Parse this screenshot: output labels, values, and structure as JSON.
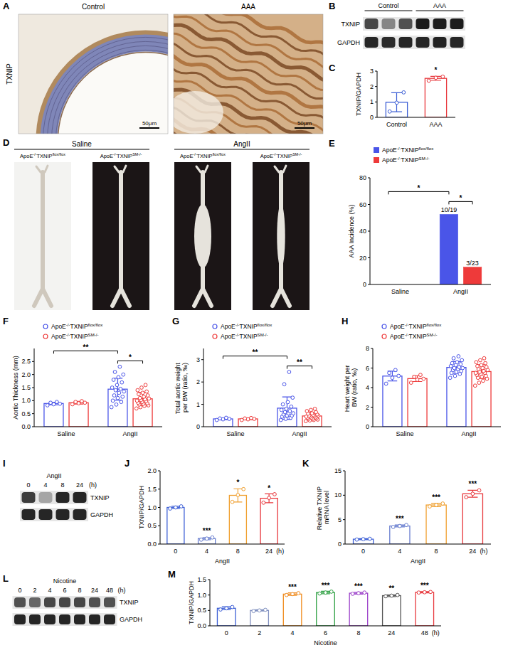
{
  "chart_data": [
    {
      "type": "bar",
      "panel_label": "C",
      "y_label": "TXNIP/GAPDH",
      "categories": [
        "Control",
        "AAA"
      ],
      "values": [
        0.98,
        2.53
      ],
      "errors": [
        0.62,
        0.13
      ],
      "points": [
        [
          0.38,
          0.95,
          1.62
        ],
        [
          2.38,
          2.57,
          2.64
        ]
      ],
      "colors": [
        "#3d5fd6",
        "#e8383d"
      ],
      "ylim": [
        0,
        3
      ],
      "yticks": [
        0,
        1,
        2,
        3
      ],
      "annotations": [
        {
          "kind": "star",
          "text": "*",
          "category": 1
        }
      ]
    },
    {
      "type": "bar",
      "panel_label": "E",
      "y_label": "AAA Incidence (%)",
      "categories": [
        "Saline",
        "AngII"
      ],
      "series": [
        {
          "name": [
            "ApoE",
            "-/-",
            "TXNIP",
            "flox/flox"
          ],
          "color": "#4a55e8",
          "values": [
            0,
            52.6
          ],
          "value_labels": [
            null,
            "10/19"
          ]
        },
        {
          "name": [
            "ApoE",
            "-/-",
            "TXNIP",
            "SM-/-"
          ],
          "color": "#ee3a3a",
          "values": [
            0,
            13.0
          ],
          "value_labels": [
            null,
            "3/23"
          ]
        }
      ],
      "data_labels": true,
      "legend": "top",
      "ylim": [
        0,
        80
      ],
      "yticks": [
        0,
        20,
        40,
        60,
        80
      ],
      "annotations": [
        {
          "kind": "bracket",
          "text": "*",
          "from": [
            1,
            0
          ],
          "to": [
            1,
            1
          ]
        },
        {
          "kind": "bracket",
          "text": "*",
          "from": [
            0,
            0
          ],
          "to": [
            1,
            0
          ]
        }
      ]
    },
    {
      "type": "bar",
      "panel_label": "F",
      "y_label": "Aortic Thickness (mm)",
      "categories": [
        "Saline",
        "AngII"
      ],
      "series": [
        {
          "name": [
            "ApoE",
            "-/-",
            "TXNIP",
            "flox/flox"
          ],
          "color": "#4a55e8",
          "values": [
            0.89,
            1.44
          ],
          "errors": [
            0.05,
            0.42
          ],
          "points": [
            [
              0.82,
              0.86,
              0.88,
              0.92,
              0.95
            ],
            [
              0.75,
              0.85,
              0.95,
              1.0,
              1.1,
              1.15,
              1.2,
              1.3,
              1.35,
              1.4,
              1.45,
              1.5,
              1.6,
              1.7,
              1.8,
              1.9,
              2.0,
              2.1,
              2.3
            ]
          ]
        },
        {
          "name": [
            "ApoE",
            "-/-",
            "TXNIP",
            "SM-/-"
          ],
          "color": "#ee3a3a",
          "values": [
            0.92,
            1.07
          ],
          "errors": [
            0.05,
            0.25
          ],
          "points": [
            [
              0.86,
              0.9,
              0.92,
              0.95,
              0.98
            ],
            [
              0.7,
              0.75,
              0.8,
              0.82,
              0.85,
              0.88,
              0.9,
              0.92,
              0.95,
              0.98,
              1.0,
              1.02,
              1.05,
              1.08,
              1.1,
              1.15,
              1.2,
              1.25,
              1.3,
              1.35,
              1.4,
              1.5,
              1.6
            ]
          ]
        }
      ],
      "legend": "top",
      "ylim": [
        0,
        3
      ],
      "yticks": [
        {
          "value": 0,
          "label": "0.0"
        },
        0.5,
        {
          "value": 1,
          "label": "1.0"
        },
        1.5,
        {
          "value": 2,
          "label": "2.0"
        },
        2.5
      ],
      "annotations": [
        {
          "kind": "bracket",
          "text": "*",
          "from": [
            1,
            0
          ],
          "to": [
            1,
            1
          ]
        },
        {
          "kind": "bracket",
          "text": "**",
          "from": [
            0,
            0
          ],
          "to": [
            1,
            0
          ]
        }
      ]
    },
    {
      "type": "bar",
      "panel_label": "G",
      "y_label": "Total aortic weight per BW (ratio, ‰)",
      "categories": [
        "Saline",
        "AngII"
      ],
      "series": [
        {
          "name": [
            "ApoE",
            "-/-",
            "TXNIP",
            "flox/flox"
          ],
          "color": "#4a55e8",
          "values": [
            0.35,
            0.83
          ],
          "errors": [
            0.04,
            0.5
          ],
          "points": [
            [
              0.3,
              0.33,
              0.35,
              0.37,
              0.4
            ],
            [
              0.3,
              0.35,
              0.4,
              0.45,
              0.5,
              0.5,
              0.55,
              0.6,
              0.6,
              0.65,
              0.7,
              0.75,
              0.8,
              0.9,
              1.0,
              1.1,
              1.3,
              1.9,
              2.45
            ]
          ]
        },
        {
          "name": [
            "ApoE",
            "-/-",
            "TXNIP",
            "SM-/-"
          ],
          "color": "#ee3a3a",
          "values": [
            0.35,
            0.48
          ],
          "errors": [
            0.04,
            0.15
          ],
          "points": [
            [
              0.3,
              0.33,
              0.35,
              0.37,
              0.39
            ],
            [
              0.25,
              0.28,
              0.3,
              0.32,
              0.35,
              0.35,
              0.38,
              0.4,
              0.4,
              0.42,
              0.45,
              0.45,
              0.48,
              0.5,
              0.5,
              0.52,
              0.55,
              0.58,
              0.6,
              0.65,
              0.7,
              0.75,
              0.8
            ]
          ]
        }
      ],
      "legend": "top",
      "ylim": [
        0,
        3.5
      ],
      "yticks": [
        0,
        1,
        2,
        3
      ],
      "annotations": [
        {
          "kind": "bracket",
          "text": "**",
          "from": [
            1,
            0
          ],
          "to": [
            1,
            1
          ]
        },
        {
          "kind": "bracket",
          "text": "**",
          "from": [
            0,
            0
          ],
          "to": [
            1,
            0
          ]
        }
      ]
    },
    {
      "type": "bar",
      "panel_label": "H",
      "y_label": "Heart weight per BW (ratio, ‰)",
      "categories": [
        "Saline",
        "AngII"
      ],
      "series": [
        {
          "name": [
            "ApoE",
            "-/-",
            "TXNIP",
            "flox/flox"
          ],
          "color": "#4a55e8",
          "values": [
            5.18,
            6.06
          ],
          "errors": [
            0.5,
            0.6
          ],
          "points": [
            [
              4.4,
              5.0,
              5.2,
              5.5,
              5.8
            ],
            [
              5.0,
              5.2,
              5.4,
              5.5,
              5.6,
              5.7,
              5.8,
              5.9,
              6.0,
              6.0,
              6.1,
              6.2,
              6.3,
              6.4,
              6.5,
              6.6,
              6.8,
              7.0,
              7.2
            ]
          ]
        },
        {
          "name": [
            "ApoE",
            "-/-",
            "TXNIP",
            "SM-/-"
          ],
          "color": "#ee3a3a",
          "values": [
            4.92,
            5.64
          ],
          "errors": [
            0.3,
            0.7
          ],
          "points": [
            [
              4.5,
              4.8,
              4.9,
              5.1,
              5.3
            ],
            [
              4.2,
              4.5,
              4.7,
              4.9,
              5.0,
              5.1,
              5.2,
              5.3,
              5.4,
              5.5,
              5.5,
              5.6,
              5.7,
              5.8,
              5.9,
              6.0,
              6.1,
              6.2,
              6.3,
              6.5,
              6.6,
              6.8,
              7.0
            ]
          ]
        }
      ],
      "legend": "top",
      "ylim": [
        0,
        8
      ],
      "yticks": [
        0,
        2,
        4,
        6,
        8
      ]
    },
    {
      "type": "bar",
      "panel_label": "J",
      "y_label": "TXNIP/GAPDH",
      "x_label": "AngII",
      "categories": [
        "0",
        "4",
        "8",
        "24"
      ],
      "values": [
        1.0,
        0.15,
        1.33,
        1.25
      ],
      "errors": [
        0.03,
        0.03,
        0.18,
        0.12
      ],
      "points": [
        [
          0.97,
          1.0,
          1.03
        ],
        [
          0.12,
          0.15,
          0.18
        ],
        [
          1.15,
          1.34,
          1.5
        ],
        [
          1.13,
          1.26,
          1.36
        ]
      ],
      "colors": [
        "#3d5fd6",
        "#6a7fd0",
        "#f0a030",
        "#e8383d"
      ],
      "ylim": [
        0,
        2
      ],
      "yticks": [
        {
          "value": 0,
          "label": "0.0"
        },
        0.5,
        {
          "value": 1,
          "label": "1.0"
        },
        1.5,
        {
          "value": 2,
          "label": "2.0"
        }
      ],
      "annotations": [
        {
          "kind": "star",
          "text": "***",
          "category": 1
        },
        {
          "kind": "star",
          "text": "*",
          "category": 2
        },
        {
          "kind": "star",
          "text": "*",
          "category": 3
        },
        {
          "kind": "unit",
          "text": "(h)"
        }
      ]
    },
    {
      "type": "bar",
      "panel_label": "K",
      "y_label": "Relative TXNIP mRNA level",
      "x_label": "AngII",
      "categories": [
        "0",
        "4",
        "8",
        "24"
      ],
      "values": [
        1.0,
        3.7,
        8.0,
        10.3
      ],
      "errors": [
        0.1,
        0.2,
        0.35,
        0.7
      ],
      "points": [
        [
          0.92,
          1.0,
          1.08
        ],
        [
          3.5,
          3.7,
          3.9
        ],
        [
          7.7,
          8.0,
          8.3
        ],
        [
          9.6,
          10.3,
          11.0
        ]
      ],
      "colors": [
        "#3d5fd6",
        "#6a7fd0",
        "#f0a030",
        "#e8383d"
      ],
      "ylim": [
        0,
        15
      ],
      "yticks": [
        0,
        5,
        10,
        15
      ],
      "annotations": [
        {
          "kind": "star",
          "text": "***",
          "category": 1
        },
        {
          "kind": "star",
          "text": "***",
          "category": 2
        },
        {
          "kind": "star",
          "text": "***",
          "category": 3
        },
        {
          "kind": "unit",
          "text": "(h)"
        }
      ]
    },
    {
      "type": "bar",
      "panel_label": "M",
      "y_label": "TXNIP/GAPDH",
      "x_label": "Nicotine",
      "categories": [
        "0",
        "2",
        "4",
        "6",
        "8",
        "24",
        "48"
      ],
      "values": [
        0.57,
        0.5,
        1.03,
        1.08,
        1.06,
        0.98,
        1.09
      ],
      "errors": [
        0.05,
        0.02,
        0.04,
        0.04,
        0.03,
        0.03,
        0.02
      ],
      "points": [
        [
          0.53,
          0.57,
          0.61
        ],
        [
          0.48,
          0.5,
          0.52
        ],
        [
          1.0,
          1.03,
          1.06
        ],
        [
          1.05,
          1.08,
          1.11
        ],
        [
          1.04,
          1.06,
          1.08
        ],
        [
          0.96,
          0.98,
          1.0
        ],
        [
          1.08,
          1.09,
          1.1
        ]
      ],
      "colors": [
        "#3d5fd6",
        "#8090c0",
        "#f08a1c",
        "#2ea043",
        "#9b3fc9",
        "#555555",
        "#e8383d"
      ],
      "ylim": [
        0,
        1.5
      ],
      "yticks": [
        {
          "value": 0,
          "label": "0.0"
        },
        0.5,
        {
          "value": 1,
          "label": "1.0"
        },
        1.5
      ],
      "annotations": [
        {
          "kind": "star",
          "text": "***",
          "category": 2
        },
        {
          "kind": "star",
          "text": "***",
          "category": 3
        },
        {
          "kind": "star",
          "text": "***",
          "category": 4
        },
        {
          "kind": "star",
          "text": "**",
          "category": 5
        },
        {
          "kind": "star",
          "text": "***",
          "category": 6
        },
        {
          "kind": "unit",
          "text": "(h)"
        }
      ]
    }
  ],
  "images": [
    {
      "type": "micrograph",
      "panel_label": "A",
      "row_label": "TXNIP",
      "columns": [
        "Control",
        "AAA"
      ],
      "scale_bars": [
        "50μm",
        "50μm"
      ]
    },
    {
      "type": "blot",
      "panel_label": "B",
      "groups": [
        "Control",
        "AAA"
      ],
      "rows": [
        "TXNIP",
        "GAPDH"
      ]
    },
    {
      "type": "photos",
      "panel_label": "D",
      "groups": [
        "Saline",
        "AngII"
      ],
      "columns": [
        [
          "ApoE",
          "-/-",
          "TXNIP",
          "flox/flox"
        ],
        [
          "ApoE",
          "-/-",
          "TXNIP",
          "SM-/-"
        ],
        [
          "ApoE",
          "-/-",
          "TXNIP",
          "flox/flox"
        ],
        [
          "ApoE",
          "-/-",
          "TXNIP",
          "SM-/-"
        ]
      ]
    },
    {
      "type": "blot",
      "panel_label": "I",
      "treatment": "AngII",
      "lanes": [
        "0",
        "4",
        "8",
        "24"
      ],
      "unit": "(h)",
      "rows": [
        "TXNIP",
        "GAPDH"
      ]
    },
    {
      "type": "blot",
      "panel_label": "L",
      "treatment": "Nicotine",
      "lanes": [
        "0",
        "2",
        "4",
        "6",
        "8",
        "24",
        "48"
      ],
      "unit": "(h)",
      "rows": [
        "TXNIP",
        "GAPDH"
      ]
    }
  ]
}
